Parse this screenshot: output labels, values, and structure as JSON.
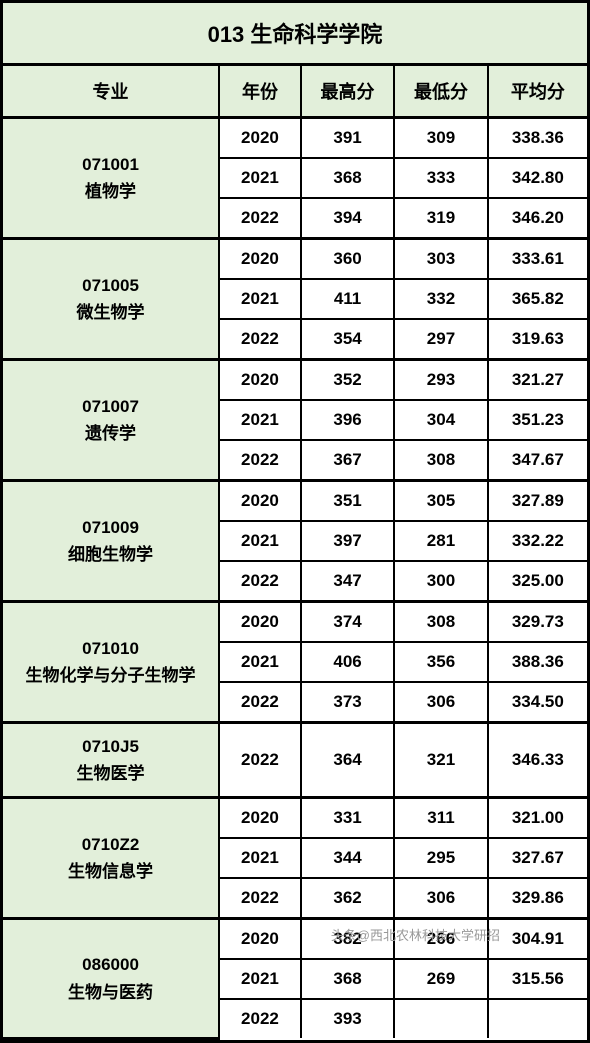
{
  "title": "013 生命科学学院",
  "columns": {
    "major": "专业",
    "year": "年份",
    "max": "最高分",
    "min": "最低分",
    "avg": "平均分"
  },
  "majors": [
    {
      "code": "071001",
      "name": "植物学",
      "rows": [
        {
          "year": "2020",
          "max": "391",
          "min": "309",
          "avg": "338.36"
        },
        {
          "year": "2021",
          "max": "368",
          "min": "333",
          "avg": "342.80"
        },
        {
          "year": "2022",
          "max": "394",
          "min": "319",
          "avg": "346.20"
        }
      ]
    },
    {
      "code": "071005",
      "name": "微生物学",
      "rows": [
        {
          "year": "2020",
          "max": "360",
          "min": "303",
          "avg": "333.61"
        },
        {
          "year": "2021",
          "max": "411",
          "min": "332",
          "avg": "365.82"
        },
        {
          "year": "2022",
          "max": "354",
          "min": "297",
          "avg": "319.63"
        }
      ]
    },
    {
      "code": "071007",
      "name": "遗传学",
      "rows": [
        {
          "year": "2020",
          "max": "352",
          "min": "293",
          "avg": "321.27"
        },
        {
          "year": "2021",
          "max": "396",
          "min": "304",
          "avg": "351.23"
        },
        {
          "year": "2022",
          "max": "367",
          "min": "308",
          "avg": "347.67"
        }
      ]
    },
    {
      "code": "071009",
      "name": "细胞生物学",
      "rows": [
        {
          "year": "2020",
          "max": "351",
          "min": "305",
          "avg": "327.89"
        },
        {
          "year": "2021",
          "max": "397",
          "min": "281",
          "avg": "332.22"
        },
        {
          "year": "2022",
          "max": "347",
          "min": "300",
          "avg": "325.00"
        }
      ]
    },
    {
      "code": "071010",
      "name": "生物化学与分子生物学",
      "rows": [
        {
          "year": "2020",
          "max": "374",
          "min": "308",
          "avg": "329.73"
        },
        {
          "year": "2021",
          "max": "406",
          "min": "356",
          "avg": "388.36"
        },
        {
          "year": "2022",
          "max": "373",
          "min": "306",
          "avg": "334.50"
        }
      ]
    },
    {
      "code": "0710J5",
      "name": "生物医学",
      "rows": [
        {
          "year": "2022",
          "max": "364",
          "min": "321",
          "avg": "346.33"
        }
      ]
    },
    {
      "code": "0710Z2",
      "name": "生物信息学",
      "rows": [
        {
          "year": "2020",
          "max": "331",
          "min": "311",
          "avg": "321.00"
        },
        {
          "year": "2021",
          "max": "344",
          "min": "295",
          "avg": "327.67"
        },
        {
          "year": "2022",
          "max": "362",
          "min": "306",
          "avg": "329.86"
        }
      ]
    },
    {
      "code": "086000",
      "name": "生物与医药",
      "rows": [
        {
          "year": "2020",
          "max": "382",
          "min": "266",
          "avg": "304.91"
        },
        {
          "year": "2021",
          "max": "368",
          "min": "269",
          "avg": "315.56"
        },
        {
          "year": "2022",
          "max": "393",
          "min": "",
          "avg": ""
        }
      ]
    }
  ],
  "watermark": "头条@西北农林科技大学研招",
  "colors": {
    "header_bg": "#e2efda",
    "cell_bg": "#ffffff",
    "border": "#000000",
    "text": "#000000",
    "watermark": "#999999"
  }
}
